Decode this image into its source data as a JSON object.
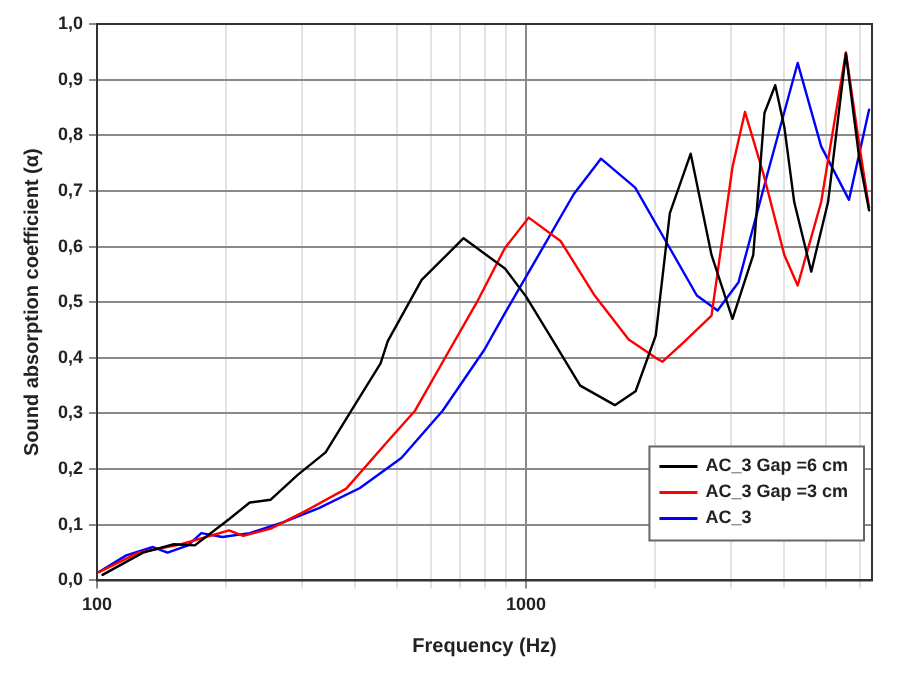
{
  "chart_data": {
    "type": "line",
    "xlabel": "Frequency (Hz)",
    "ylabel": "Sound absorption coefficient (α)",
    "log": "x",
    "xlim": [
      100,
      6400
    ],
    "ylim": [
      0,
      1
    ],
    "xticks": [
      100,
      {
        "value": 200,
        "label": null
      },
      {
        "value": 300,
        "label": null
      },
      {
        "value": 400,
        "label": null
      },
      {
        "value": 500,
        "label": null
      },
      {
        "value": 600,
        "label": null
      },
      {
        "value": 700,
        "label": null
      },
      {
        "value": 800,
        "label": null
      },
      {
        "value": 900,
        "label": null
      },
      1000,
      {
        "value": 2000,
        "label": null
      },
      {
        "value": 3000,
        "label": null
      },
      {
        "value": 4000,
        "label": null
      },
      {
        "value": 5000,
        "label": null
      },
      {
        "value": 6000,
        "label": null
      }
    ],
    "yticks": [
      {
        "value": 0,
        "label": "0,0"
      },
      {
        "value": 0.1,
        "label": "0,1"
      },
      {
        "value": 0.2,
        "label": "0,2"
      },
      {
        "value": 0.3,
        "label": "0,3"
      },
      {
        "value": 0.4,
        "label": "0,4"
      },
      {
        "value": 0.5,
        "label": "0,5"
      },
      {
        "value": 0.6,
        "label": "0,6"
      },
      {
        "value": 0.7,
        "label": "0,7"
      },
      {
        "value": 0.8,
        "label": "0,8"
      },
      {
        "value": 0.9,
        "label": "0,9"
      },
      {
        "value": 1,
        "label": "1,0"
      }
    ],
    "grid": true,
    "legend": "bottom right",
    "marker": "none",
    "line_style": "solid",
    "series": [
      {
        "name": "AC_3 Gap =6 cm",
        "color": "#000000",
        "x": [
          103,
          128,
          151,
          169,
          203,
          227,
          254,
          294,
          341,
          395,
          458,
          476,
          571,
          715,
          894,
          1000,
          1157,
          1337,
          1610,
          1800,
          2005,
          2163,
          2419,
          2705,
          3027,
          3384,
          3594,
          3808,
          3998,
          4216,
          4620,
          5056,
          5563,
          5985,
          6300
        ],
        "values": [
          0.01,
          0.05,
          0.065,
          0.063,
          0.11,
          0.14,
          0.145,
          0.19,
          0.23,
          0.31,
          0.39,
          0.43,
          0.54,
          0.615,
          0.56,
          0.51,
          0.43,
          0.35,
          0.315,
          0.34,
          0.44,
          0.66,
          0.767,
          0.585,
          0.47,
          0.585,
          0.84,
          0.89,
          0.815,
          0.68,
          0.555,
          0.68,
          0.947,
          0.755,
          0.665
        ]
      },
      {
        "name": "AC_3 Gap =3 cm",
        "color": "#ff0000",
        "x": [
          101,
          125,
          157,
          203,
          219,
          254,
          305,
          381,
          476,
          551,
          664,
          768,
          892,
          1014,
          1203,
          1445,
          1734,
          2005,
          2080,
          2322,
          2705,
          3027,
          3237,
          3575,
          3998,
          4295,
          4872,
          5563,
          5985,
          6300
        ],
        "values": [
          0.015,
          0.05,
          0.065,
          0.09,
          0.08,
          0.093,
          0.124,
          0.165,
          0.25,
          0.305,
          0.415,
          0.5,
          0.597,
          0.652,
          0.61,
          0.512,
          0.433,
          0.4,
          0.393,
          0.427,
          0.476,
          0.743,
          0.842,
          0.73,
          0.585,
          0.53,
          0.68,
          0.949,
          0.78,
          0.67
        ]
      },
      {
        "name": "AC_3",
        "color": "#0000ff",
        "x": [
          101,
          117,
          135,
          146,
          163,
          175,
          196,
          227,
          273,
          329,
          410,
          512,
          639,
          800,
          892,
          1070,
          1291,
          1494,
          1796,
          2163,
          2500,
          2794,
          3127,
          3650,
          4295,
          4872,
          5657,
          6300
        ],
        "values": [
          0.015,
          0.045,
          0.06,
          0.05,
          0.063,
          0.085,
          0.078,
          0.085,
          0.105,
          0.13,
          0.166,
          0.22,
          0.305,
          0.415,
          0.48,
          0.585,
          0.694,
          0.758,
          0.706,
          0.597,
          0.512,
          0.485,
          0.536,
          0.73,
          0.93,
          0.78,
          0.684,
          0.846
        ]
      }
    ]
  }
}
